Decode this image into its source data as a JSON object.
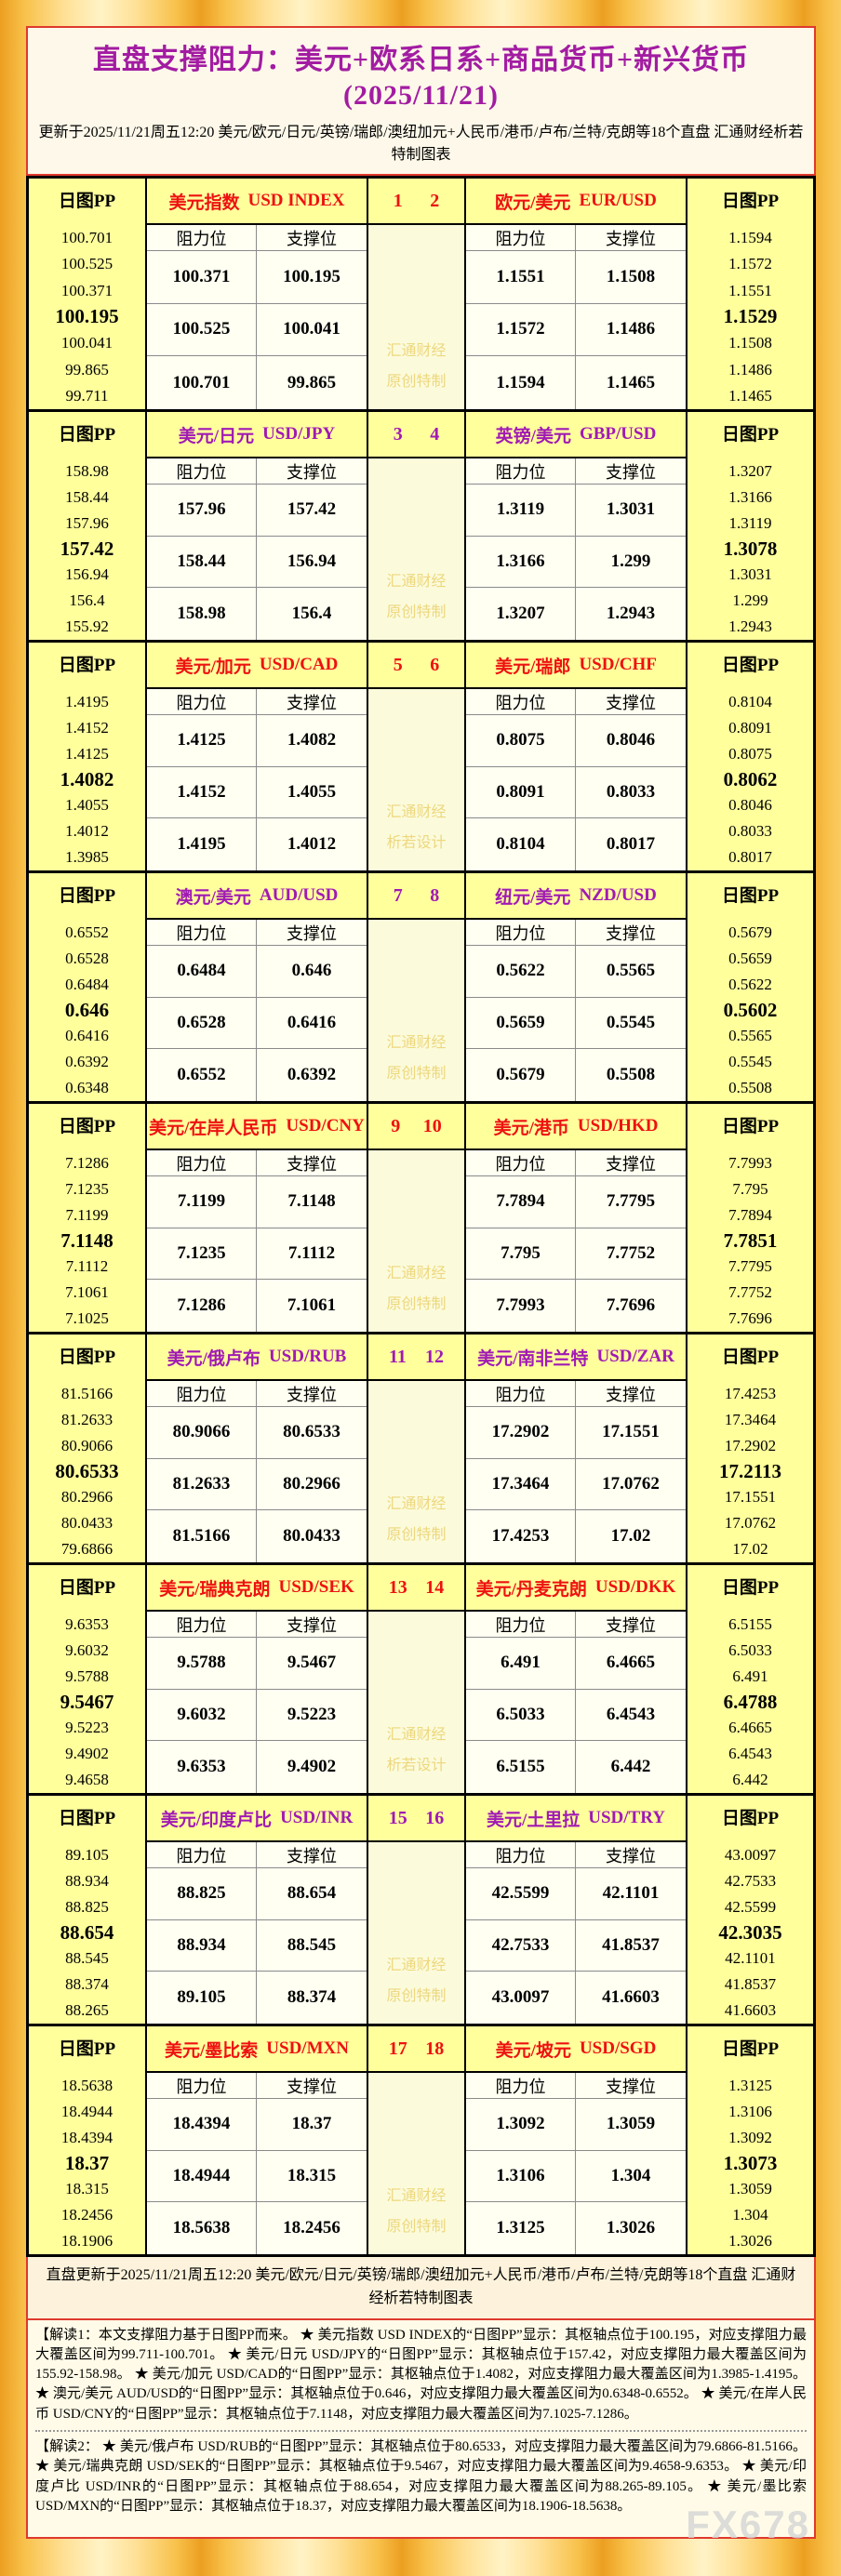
{
  "header": {
    "title": "直盘支撑阻力：美元+欧系日系+商品货币+新兴货币(2025/11/21)",
    "subtitle": "更新于2025/11/21周五12:20 美元/欧元/日元/英镑/瑞郎/澳纽加元+人民币/港币/卢布/兰特/克朗等18个直盘 汇通财经析若特制图表"
  },
  "labels": {
    "pp_header": "日图PP",
    "resistance": "阻力位",
    "support": "支撑位",
    "watermark_line1": "汇通财经"
  },
  "colors": {
    "accent_red": "#ee1111",
    "accent_purple": "#a01ab4",
    "title_magenta": "#a21ca2",
    "pp_column_bg": "#ffff9c",
    "cell_bg": "#fffff2",
    "page_gold": "#f6b23a",
    "watermark_gold": "#eed77d"
  },
  "chart_data": {
    "type": "table",
    "title": "直盘支撑阻力：美元+欧系日系+商品货币+新兴货币(2025/11/21)",
    "columns": [
      "日图PP(7级)",
      "阻力位",
      "支撑位"
    ],
    "instruments": [
      {
        "name": "美元指数",
        "code": "USD INDEX",
        "pp": [
          "100.701",
          "100.525",
          "100.371",
          "100.195",
          "100.041",
          "99.865",
          "99.711"
        ],
        "rows": [
          [
            "100.371",
            "100.195"
          ],
          [
            "100.525",
            "100.041"
          ],
          [
            "100.701",
            "99.865"
          ]
        ]
      },
      {
        "name": "欧元/美元",
        "code": "EUR/USD",
        "pp": [
          "1.1594",
          "1.1572",
          "1.1551",
          "1.1529",
          "1.1508",
          "1.1486",
          "1.1465"
        ],
        "rows": [
          [
            "1.1551",
            "1.1508"
          ],
          [
            "1.1572",
            "1.1486"
          ],
          [
            "1.1594",
            "1.1465"
          ]
        ]
      },
      {
        "name": "美元/日元",
        "code": "USD/JPY",
        "pp": [
          "158.98",
          "158.44",
          "157.96",
          "157.42",
          "156.94",
          "156.4",
          "155.92"
        ],
        "rows": [
          [
            "157.96",
            "157.42"
          ],
          [
            "158.44",
            "156.94"
          ],
          [
            "158.98",
            "156.4"
          ]
        ]
      },
      {
        "name": "英镑/美元",
        "code": "GBP/USD",
        "pp": [
          "1.3207",
          "1.3166",
          "1.3119",
          "1.3078",
          "1.3031",
          "1.299",
          "1.2943"
        ],
        "rows": [
          [
            "1.3119",
            "1.3031"
          ],
          [
            "1.3166",
            "1.299"
          ],
          [
            "1.3207",
            "1.2943"
          ]
        ]
      },
      {
        "name": "美元/加元",
        "code": "USD/CAD",
        "pp": [
          "1.4195",
          "1.4152",
          "1.4125",
          "1.4082",
          "1.4055",
          "1.4012",
          "1.3985"
        ],
        "rows": [
          [
            "1.4125",
            "1.4082"
          ],
          [
            "1.4152",
            "1.4055"
          ],
          [
            "1.4195",
            "1.4012"
          ]
        ]
      },
      {
        "name": "美元/瑞郎",
        "code": "USD/CHF",
        "pp": [
          "0.8104",
          "0.8091",
          "0.8075",
          "0.8062",
          "0.8046",
          "0.8033",
          "0.8017"
        ],
        "rows": [
          [
            "0.8075",
            "0.8046"
          ],
          [
            "0.8091",
            "0.8033"
          ],
          [
            "0.8104",
            "0.8017"
          ]
        ]
      },
      {
        "name": "澳元/美元",
        "code": "AUD/USD",
        "pp": [
          "0.6552",
          "0.6528",
          "0.6484",
          "0.646",
          "0.6416",
          "0.6392",
          "0.6348"
        ],
        "rows": [
          [
            "0.6484",
            "0.646"
          ],
          [
            "0.6528",
            "0.6416"
          ],
          [
            "0.6552",
            "0.6392"
          ]
        ]
      },
      {
        "name": "纽元/美元",
        "code": "NZD/USD",
        "pp": [
          "0.5679",
          "0.5659",
          "0.5622",
          "0.5602",
          "0.5565",
          "0.5545",
          "0.5508"
        ],
        "rows": [
          [
            "0.5622",
            "0.5565"
          ],
          [
            "0.5659",
            "0.5545"
          ],
          [
            "0.5679",
            "0.5508"
          ]
        ]
      },
      {
        "name": "美元/在岸人民币",
        "code": "USD/CNY",
        "pp": [
          "7.1286",
          "7.1235",
          "7.1199",
          "7.1148",
          "7.1112",
          "7.1061",
          "7.1025"
        ],
        "rows": [
          [
            "7.1199",
            "7.1148"
          ],
          [
            "7.1235",
            "7.1112"
          ],
          [
            "7.1286",
            "7.1061"
          ]
        ]
      },
      {
        "name": "美元/港币",
        "code": "USD/HKD",
        "pp": [
          "7.7993",
          "7.795",
          "7.7894",
          "7.7851",
          "7.7795",
          "7.7752",
          "7.7696"
        ],
        "rows": [
          [
            "7.7894",
            "7.7795"
          ],
          [
            "7.795",
            "7.7752"
          ],
          [
            "7.7993",
            "7.7696"
          ]
        ]
      },
      {
        "name": "美元/俄卢布",
        "code": "USD/RUB",
        "pp": [
          "81.5166",
          "81.2633",
          "80.9066",
          "80.6533",
          "80.2966",
          "80.0433",
          "79.6866"
        ],
        "rows": [
          [
            "80.9066",
            "80.6533"
          ],
          [
            "81.2633",
            "80.2966"
          ],
          [
            "81.5166",
            "80.0433"
          ]
        ]
      },
      {
        "name": "美元/南非兰特",
        "code": "USD/ZAR",
        "pp": [
          "17.4253",
          "17.3464",
          "17.2902",
          "17.2113",
          "17.1551",
          "17.0762",
          "17.02"
        ],
        "rows": [
          [
            "17.2902",
            "17.1551"
          ],
          [
            "17.3464",
            "17.0762"
          ],
          [
            "17.4253",
            "17.02"
          ]
        ]
      },
      {
        "name": "美元/瑞典克朗",
        "code": "USD/SEK",
        "pp": [
          "9.6353",
          "9.6032",
          "9.5788",
          "9.5467",
          "9.5223",
          "9.4902",
          "9.4658"
        ],
        "rows": [
          [
            "9.5788",
            "9.5467"
          ],
          [
            "9.6032",
            "9.5223"
          ],
          [
            "9.6353",
            "9.4902"
          ]
        ]
      },
      {
        "name": "美元/丹麦克朗",
        "code": "USD/DKK",
        "pp": [
          "6.5155",
          "6.5033",
          "6.491",
          "6.4788",
          "6.4665",
          "6.4543",
          "6.442"
        ],
        "rows": [
          [
            "6.491",
            "6.4665"
          ],
          [
            "6.5033",
            "6.4543"
          ],
          [
            "6.5155",
            "6.442"
          ]
        ]
      },
      {
        "name": "美元/印度卢比",
        "code": "USD/INR",
        "pp": [
          "89.105",
          "88.934",
          "88.825",
          "88.654",
          "88.545",
          "88.374",
          "88.265"
        ],
        "rows": [
          [
            "88.825",
            "88.654"
          ],
          [
            "88.934",
            "88.545"
          ],
          [
            "89.105",
            "88.374"
          ]
        ]
      },
      {
        "name": "美元/土里拉",
        "code": "USD/TRY",
        "pp": [
          "43.0097",
          "42.7533",
          "42.5599",
          "42.3035",
          "42.1101",
          "41.8537",
          "41.6603"
        ],
        "rows": [
          [
            "42.5599",
            "42.1101"
          ],
          [
            "42.7533",
            "41.8537"
          ],
          [
            "43.0097",
            "41.6603"
          ]
        ]
      },
      {
        "name": "美元/墨比索",
        "code": "USD/MXN",
        "pp": [
          "18.5638",
          "18.4944",
          "18.4394",
          "18.37",
          "18.315",
          "18.2456",
          "18.1906"
        ],
        "rows": [
          [
            "18.4394",
            "18.37"
          ],
          [
            "18.4944",
            "18.315"
          ],
          [
            "18.5638",
            "18.2456"
          ]
        ]
      },
      {
        "name": "美元/坡元",
        "code": "USD/SGD",
        "pp": [
          "1.3125",
          "1.3106",
          "1.3092",
          "1.3073",
          "1.3059",
          "1.304",
          "1.3026"
        ],
        "rows": [
          [
            "1.3092",
            "1.3059"
          ],
          [
            "1.3106",
            "1.304"
          ],
          [
            "1.3125",
            "1.3026"
          ]
        ]
      }
    ]
  },
  "blocks": [
    {
      "nums": [
        "1",
        "2"
      ],
      "accent": "red",
      "wm2": "原创特制"
    },
    {
      "nums": [
        "3",
        "4"
      ],
      "accent": "purple",
      "wm2": "原创特制"
    },
    {
      "nums": [
        "5",
        "6"
      ],
      "accent": "red",
      "wm2": "析若设计"
    },
    {
      "nums": [
        "7",
        "8"
      ],
      "accent": "purple",
      "wm2": "原创特制"
    },
    {
      "nums": [
        "9",
        "10"
      ],
      "accent": "red",
      "wm2": "原创特制"
    },
    {
      "nums": [
        "11",
        "12"
      ],
      "accent": "purple",
      "wm2": "原创特制"
    },
    {
      "nums": [
        "13",
        "14"
      ],
      "accent": "red",
      "wm2": "析若设计"
    },
    {
      "nums": [
        "15",
        "16"
      ],
      "accent": "purple",
      "wm2": "原创特制"
    },
    {
      "nums": [
        "17",
        "18"
      ],
      "accent": "red",
      "wm2": "原创特制"
    }
  ],
  "footer": {
    "update_line": "直盘更新于2025/11/21周五12:20 美元/欧元/日元/英镑/瑞郎/澳纽加元+人民币/港币/卢布/兰特/克朗等18个直盘 汇通财经析若特制图表"
  },
  "notes": {
    "note1": "【解读1：本文支撑阻力基于日图PP而来。 ★ 美元指数 USD INDEX的“日图PP”显示：其枢轴点位于100.195，对应支撑阻力最大覆盖区间为99.711-100.701。 ★ 美元/日元 USD/JPY的“日图PP”显示：其枢轴点位于157.42，对应支撑阻力最大覆盖区间为155.92-158.98。 ★ 美元/加元 USD/CAD的“日图PP”显示：其枢轴点位于1.4082，对应支撑阻力最大覆盖区间为1.3985-1.4195。 ★ 澳元/美元 AUD/USD的“日图PP”显示：其枢轴点位于0.646，对应支撑阻力最大覆盖区间为0.6348-0.6552。 ★ 美元/在岸人民币 USD/CNY的“日图PP”显示：其枢轴点位于7.1148，对应支撑阻力最大覆盖区间为7.1025-7.1286。",
    "note2": "【解读2： ★ 美元/俄卢布 USD/RUB的“日图PP”显示：其枢轴点位于80.6533，对应支撑阻力最大覆盖区间为79.6866-81.5166。 ★ 美元/瑞典克朗 USD/SEK的“日图PP”显示：其枢轴点位于9.5467，对应支撑阻力最大覆盖区间为9.4658-9.6353。 ★ 美元/印度卢比 USD/INR的“日图PP”显示：其枢轴点位于88.654，对应支撑阻力最大覆盖区间为88.265-89.105。 ★ 美元/墨比索 USD/MXN的“日图PP”显示：其枢轴点位于18.37，对应支撑阻力最大覆盖区间为18.1906-18.5638。"
  },
  "brand": {
    "watermark": "FX678"
  }
}
